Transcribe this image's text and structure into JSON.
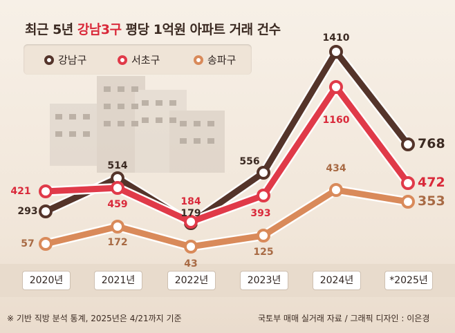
{
  "title": {
    "pre": "최근 5년 ",
    "highlight": "강남3구",
    "post": " 평당 1억원 아파트 거래 건수"
  },
  "colors": {
    "gangnam": "#54342a",
    "seocho": "#e03a49",
    "songpa": "#d98a5a"
  },
  "chart_data": {
    "type": "line",
    "categories": [
      "2020년",
      "2021년",
      "2022년",
      "2023년",
      "2024년",
      "*2025년"
    ],
    "series": [
      {
        "name": "강남구",
        "values": [
          293,
          514,
          179,
          556,
          1410,
          768
        ]
      },
      {
        "name": "서초구",
        "values": [
          421,
          459,
          184,
          393,
          1160,
          472
        ]
      },
      {
        "name": "송파구",
        "values": [
          57,
          172,
          43,
          125,
          434,
          353
        ]
      }
    ]
  },
  "footer": {
    "left": "※ 기반 직방 분석 통계, 2025년은 4/21까지 기준",
    "right": "국토부 매매 실거래 자료 / 그래픽 디자인 : 이은경"
  }
}
